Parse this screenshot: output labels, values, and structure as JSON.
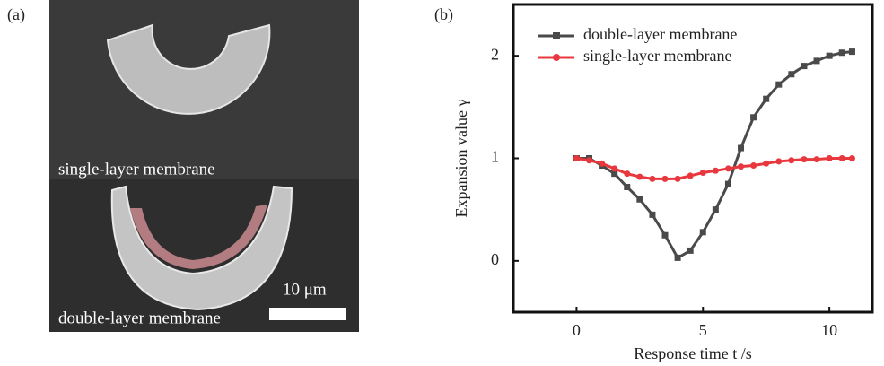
{
  "panel_a": {
    "label": "(a)",
    "top_caption": "single-layer membrane",
    "bottom_caption": "double-layer membrane",
    "scale_bar": "10 μm"
  },
  "chart_data": {
    "type": "line",
    "panel_label": "(b)",
    "x_label": "Response time t /s",
    "y_label": "Expansion value γ",
    "xlim": [
      -2.5,
      11.7
    ],
    "ylim": [
      -0.5,
      2.5
    ],
    "xticks": [
      0,
      5,
      10
    ],
    "yticks": [
      0,
      1,
      2
    ],
    "legend": "upper left",
    "x": [
      0,
      0.5,
      1,
      1.5,
      2,
      2.5,
      3,
      3.5,
      4,
      4.5,
      5,
      5.5,
      6,
      6.5,
      7,
      7.5,
      8,
      8.5,
      9,
      9.5,
      10,
      10.5,
      10.9
    ],
    "series": [
      {
        "name": "double-layer membrane",
        "color": "#4a4a4a",
        "marker": "square",
        "values": [
          1.0,
          1.0,
          0.93,
          0.85,
          0.72,
          0.6,
          0.45,
          0.25,
          0.03,
          0.1,
          0.28,
          0.5,
          0.75,
          1.1,
          1.4,
          1.58,
          1.72,
          1.82,
          1.9,
          1.95,
          2.0,
          2.03,
          2.04
        ]
      },
      {
        "name": "single-layer membrane",
        "color": "#e8383d",
        "marker": "circle",
        "values": [
          1.0,
          0.98,
          0.95,
          0.9,
          0.85,
          0.82,
          0.8,
          0.8,
          0.8,
          0.83,
          0.86,
          0.88,
          0.9,
          0.92,
          0.93,
          0.95,
          0.97,
          0.98,
          0.99,
          0.99,
          1.0,
          1.0,
          1.0
        ]
      }
    ]
  }
}
